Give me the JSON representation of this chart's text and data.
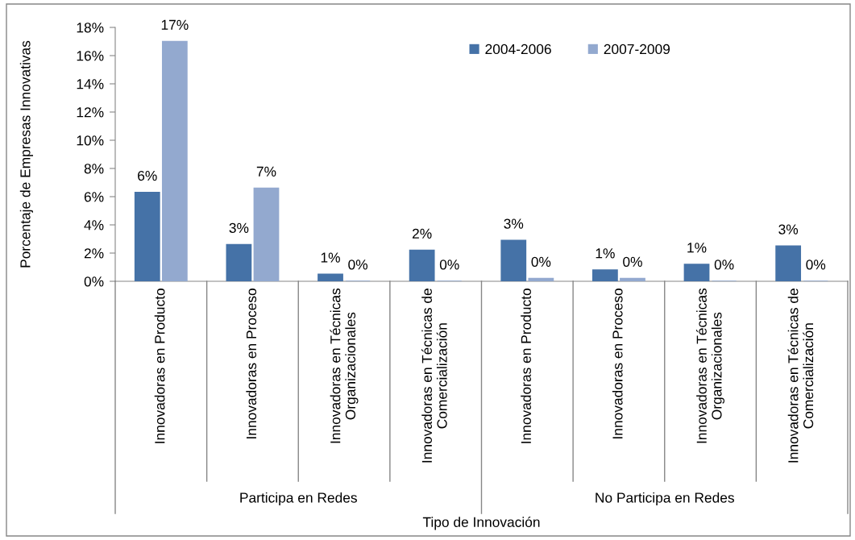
{
  "chart_data": {
    "type": "bar",
    "ylabel": "Porcentaje de Empresas Innovativas",
    "xlabel": "Tipo de Innovación",
    "categories": [
      "Innovadoras en Producto",
      "Innovadoras en Proceso",
      "Innovadoras en Técnicas\nOrganizacionales",
      "Innovadoras en Técnicas de\nComercialización",
      "Innovadoras en Producto",
      "Innovadoras en Proceso",
      "Innovadoras en Técnicas\nOrganizacionales",
      "Innovadoras en Técnicas de\nComercialización"
    ],
    "annotations": [
      "Participa en Redes",
      "No Participa en Redes"
    ],
    "series": [
      {
        "name": "2004-2006",
        "color": "#4572a7",
        "values": [
          6.3,
          2.6,
          0.5,
          2.2,
          2.9,
          0.8,
          1.2,
          2.5
        ],
        "value_labels": [
          "6%",
          "3%",
          "1%",
          "2%",
          "3%",
          "1%",
          "1%",
          "3%"
        ]
      },
      {
        "name": "2007-2009",
        "color": "#93a9cf",
        "values": [
          17.0,
          6.6,
          0,
          0,
          0.2,
          0.2,
          0,
          0
        ],
        "value_labels": [
          "17%",
          "7%",
          "0%",
          "0%",
          "0%",
          "0%",
          "0%",
          "0%"
        ]
      }
    ],
    "ylim": [
      0,
      18
    ],
    "yticks": [
      {
        "value": 0,
        "label": "0%"
      },
      {
        "value": 2,
        "label": "2%"
      },
      {
        "value": 4,
        "label": "4%"
      },
      {
        "value": 6,
        "label": "6%"
      },
      {
        "value": 8,
        "label": "8%"
      },
      {
        "value": 10,
        "label": "10%"
      },
      {
        "value": 12,
        "label": "12%"
      },
      {
        "value": 14,
        "label": "14%"
      },
      {
        "value": 16,
        "label": "16%"
      },
      {
        "value": 18,
        "label": "18%"
      }
    ],
    "legend": "top right"
  }
}
